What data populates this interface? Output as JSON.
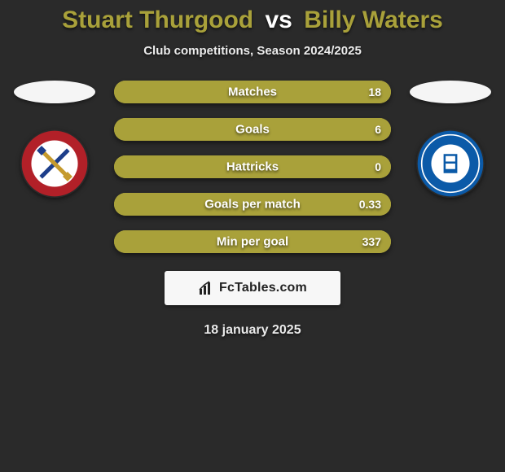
{
  "title": {
    "player1": "Stuart Thurgood",
    "vs": "vs",
    "player2": "Billy Waters",
    "player1_color": "#a9a13a",
    "player2_color": "#a9a13a"
  },
  "subtitle": "Club competitions, Season 2024/2025",
  "colors": {
    "bar_left": "#a9a13a",
    "bar_right": "#a9a13a",
    "bar_track": "#a9a13a",
    "text_shadow": "#000000",
    "background": "#2a2a2a"
  },
  "left_side": {
    "flag_label": "player1-flag",
    "crest_label": "player1-club-crest",
    "crest_colors": {
      "outer": "#b22028",
      "inner": "#ffffff",
      "accent1": "#1d3e8a",
      "accent2": "#c59a2d"
    }
  },
  "right_side": {
    "flag_label": "player2-flag",
    "crest_label": "player2-club-crest",
    "crest_colors": {
      "outer": "#0b5aa8",
      "ring": "#ffffff",
      "inner": "#0b5aa8",
      "accent": "#ffffff"
    }
  },
  "bars": [
    {
      "label": "Matches",
      "left": "",
      "right": "18",
      "left_pct": 0,
      "right_pct": 100
    },
    {
      "label": "Goals",
      "left": "",
      "right": "6",
      "left_pct": 0,
      "right_pct": 100
    },
    {
      "label": "Hattricks",
      "left": "",
      "right": "0",
      "left_pct": 0,
      "right_pct": 100
    },
    {
      "label": "Goals per match",
      "left": "",
      "right": "0.33",
      "left_pct": 0,
      "right_pct": 100
    },
    {
      "label": "Min per goal",
      "left": "",
      "right": "337",
      "left_pct": 0,
      "right_pct": 100
    }
  ],
  "footer": {
    "brand": "FcTables.com",
    "date": "18 january 2025"
  }
}
